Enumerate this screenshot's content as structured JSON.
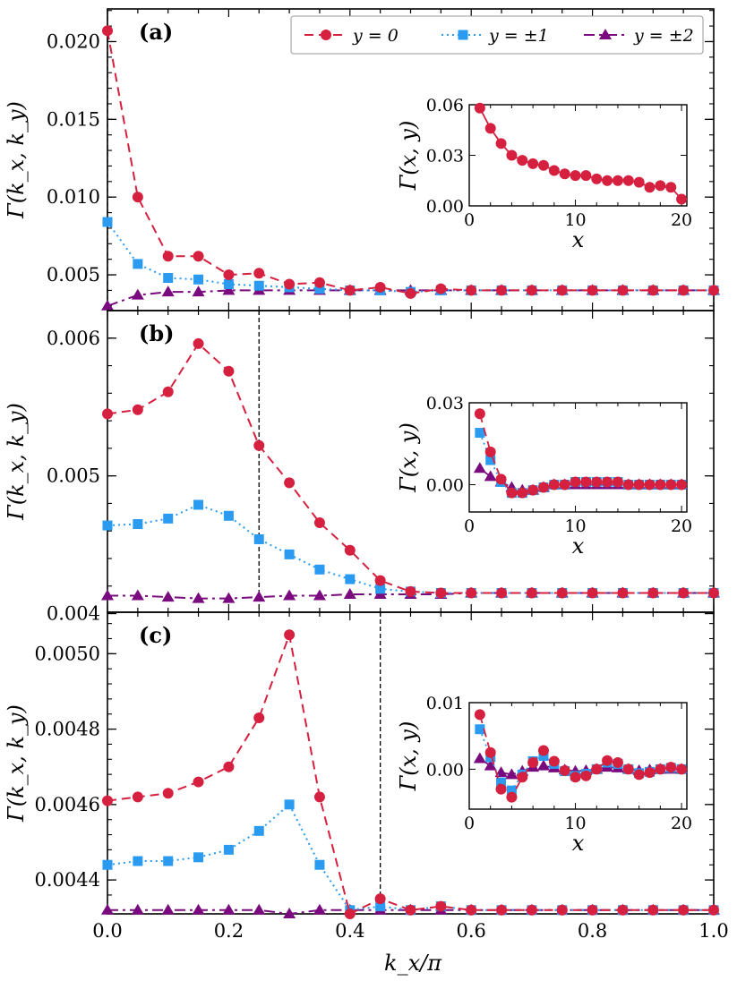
{
  "figure": {
    "xlabel": "k_x/π",
    "legend": [
      "y = 0",
      "y = ±1",
      "y = ±2"
    ]
  },
  "chart_data": [
    {
      "type": "line",
      "panel": "(a)",
      "ylabel": "Γ(k_x, k_y)",
      "xlim": [
        0,
        1.0
      ],
      "ylim": [
        0.0027,
        0.0221
      ],
      "yticks": [
        0.005,
        0.01,
        0.015,
        0.02
      ],
      "ytick_labels": [
        "0.005",
        "0.010",
        "0.015",
        "0.020"
      ],
      "xticks": [
        0,
        0.2,
        0.4,
        0.6,
        0.8,
        1.0
      ],
      "xtick_labels": [
        "0.0",
        "0.2",
        "0.4",
        "0.6",
        "0.8",
        "1.0"
      ],
      "show_xtick_labels": false,
      "vline": 0.0,
      "x": [
        0,
        0.05,
        0.1,
        0.15,
        0.2,
        0.25,
        0.3,
        0.35,
        0.4,
        0.45,
        0.5,
        0.55,
        0.6,
        0.65,
        0.7,
        0.75,
        0.8,
        0.85,
        0.9,
        0.95,
        1.0
      ],
      "series": [
        {
          "name": "y = 0",
          "values": [
            0.0207,
            0.01,
            0.0062,
            0.0062,
            0.005,
            0.0051,
            0.0044,
            0.0045,
            0.004,
            0.0042,
            0.0038,
            0.0041,
            0.004,
            0.004,
            0.004,
            0.004,
            0.004,
            0.004,
            0.004,
            0.004,
            0.004
          ]
        },
        {
          "name": "y = ±1",
          "values": [
            0.0084,
            0.0057,
            0.0048,
            0.0047,
            0.0044,
            0.0043,
            0.0042,
            0.0041,
            0.004,
            0.004,
            0.0039,
            0.004,
            0.004,
            0.004,
            0.004,
            0.004,
            0.004,
            0.004,
            0.004,
            0.004,
            0.004
          ]
        },
        {
          "name": "y = ±2",
          "values": [
            0.003,
            0.0037,
            0.0039,
            0.0039,
            0.004,
            0.004,
            0.004,
            0.004,
            0.004,
            0.004,
            0.004,
            0.004,
            0.004,
            0.004,
            0.004,
            0.004,
            0.004,
            0.004,
            0.004,
            0.004,
            0.004
          ]
        }
      ],
      "inset": {
        "xlabel": "x",
        "ylabel": "Γ(x, y)",
        "xlim": [
          0,
          20.5
        ],
        "ylim": [
          0,
          0.06
        ],
        "xticks": [
          0,
          10,
          20
        ],
        "yticks": [
          0.0,
          0.03,
          0.06
        ],
        "ytick_labels": [
          "0.00",
          "0.03",
          "0.06"
        ],
        "x": [
          1,
          2,
          3,
          4,
          5,
          6,
          7,
          8,
          9,
          10,
          11,
          12,
          13,
          14,
          15,
          16,
          17,
          18,
          19,
          20
        ],
        "series": [
          {
            "name": "y = 0",
            "values": [
              0.058,
              0.046,
              0.037,
              0.03,
              0.027,
              0.025,
              0.024,
              0.021,
              0.019,
              0.018,
              0.018,
              0.016,
              0.015,
              0.015,
              0.015,
              0.014,
              0.011,
              0.012,
              0.011,
              0.004
            ]
          }
        ]
      }
    },
    {
      "type": "line",
      "panel": "(b)",
      "ylabel": "Γ(k_x, k_y)",
      "xlim": [
        0,
        1.0
      ],
      "ylim": [
        0.00401,
        0.0062
      ],
      "yticks": [
        0.004,
        0.005,
        0.006
      ],
      "ytick_labels": [
        "0.004",
        "0.005",
        "0.006"
      ],
      "xticks": [
        0,
        0.2,
        0.4,
        0.6,
        0.8,
        1.0
      ],
      "xtick_labels": [
        "0.0",
        "0.2",
        "0.4",
        "0.6",
        "0.8",
        "1.0"
      ],
      "show_xtick_labels": false,
      "vline": 0.25,
      "x": [
        0,
        0.05,
        0.1,
        0.15,
        0.2,
        0.25,
        0.3,
        0.35,
        0.4,
        0.45,
        0.5,
        0.55,
        0.6,
        0.65,
        0.7,
        0.75,
        0.8,
        0.85,
        0.9,
        0.95,
        1.0
      ],
      "series": [
        {
          "name": "y = 0",
          "values": [
            0.00545,
            0.00548,
            0.00561,
            0.00596,
            0.00576,
            0.00522,
            0.00495,
            0.00466,
            0.00446,
            0.00424,
            0.00416,
            0.00415,
            0.00415,
            0.00415,
            0.00415,
            0.00415,
            0.00415,
            0.00415,
            0.00415,
            0.00415,
            0.00415
          ]
        },
        {
          "name": "y = ±1",
          "values": [
            0.00464,
            0.00465,
            0.00469,
            0.00479,
            0.00471,
            0.00454,
            0.00443,
            0.00432,
            0.00425,
            0.00418,
            0.00416,
            0.00415,
            0.00415,
            0.00415,
            0.00415,
            0.00415,
            0.00415,
            0.00415,
            0.00415,
            0.00415,
            0.00415
          ]
        },
        {
          "name": "y = ±2",
          "values": [
            0.00413,
            0.00413,
            0.00412,
            0.00411,
            0.00411,
            0.00412,
            0.00413,
            0.00413,
            0.00414,
            0.00414,
            0.00414,
            0.00414,
            0.00415,
            0.00415,
            0.00415,
            0.00415,
            0.00415,
            0.00415,
            0.00415,
            0.00415,
            0.00415
          ]
        }
      ],
      "inset": {
        "xlabel": "x",
        "ylabel": "Γ(x, y)",
        "xlim": [
          0,
          20.5
        ],
        "ylim": [
          -0.01,
          0.03
        ],
        "xticks": [
          0,
          10,
          20
        ],
        "yticks": [
          0.0,
          0.03
        ],
        "ytick_labels": [
          "0.00",
          "0.03"
        ],
        "x": [
          1,
          2,
          3,
          4,
          5,
          6,
          7,
          8,
          9,
          10,
          11,
          12,
          13,
          14,
          15,
          16,
          17,
          18,
          19,
          20
        ],
        "series": [
          {
            "name": "y = 0",
            "values": [
              0.026,
              0.012,
              0.002,
              -0.003,
              -0.003,
              -0.002,
              -0.001,
              0.0,
              0.0,
              0.001,
              0.001,
              0.001,
              0.001,
              0.001,
              0.0,
              0.0,
              0.0,
              0.0,
              0.0,
              0.0
            ]
          },
          {
            "name": "y = ±1",
            "values": [
              0.019,
              0.009,
              0.001,
              -0.003,
              -0.003,
              -0.002,
              -0.001,
              0.0,
              0.0,
              0.001,
              0.001,
              0.001,
              0.001,
              0.001,
              0.0,
              0.0,
              0.0,
              0.0,
              0.0,
              0.0
            ]
          },
          {
            "name": "y = ±2",
            "values": [
              0.006,
              0.003,
              0.001,
              -0.001,
              -0.002,
              -0.002,
              -0.001,
              0.0,
              0.0,
              0.0,
              0.0,
              0.0,
              0.0,
              0.0,
              0.0,
              0.0,
              0.0,
              0.0,
              0.0,
              0.0
            ]
          }
        ]
      }
    },
    {
      "type": "line",
      "panel": "(c)",
      "ylabel": "Γ(k_x, k_y)",
      "xlim": [
        0,
        1.0
      ],
      "ylim": [
        0.00431,
        0.00511
      ],
      "yticks": [
        0.0044,
        0.0046,
        0.0048,
        0.005
      ],
      "ytick_labels": [
        "0.0044",
        "0.0046",
        "0.0048",
        "0.0050"
      ],
      "xticks": [
        0,
        0.2,
        0.4,
        0.6,
        0.8,
        1.0
      ],
      "xtick_labels": [
        "0.0",
        "0.2",
        "0.4",
        "0.6",
        "0.8",
        "1.0"
      ],
      "show_xtick_labels": true,
      "vline": 0.45,
      "x": [
        0,
        0.05,
        0.1,
        0.15,
        0.2,
        0.25,
        0.3,
        0.35,
        0.4,
        0.45,
        0.5,
        0.55,
        0.6,
        0.65,
        0.7,
        0.75,
        0.8,
        0.85,
        0.9,
        0.95,
        1.0
      ],
      "series": [
        {
          "name": "y = 0",
          "values": [
            0.00461,
            0.00462,
            0.00463,
            0.00466,
            0.0047,
            0.00483,
            0.00505,
            0.00462,
            0.00431,
            0.00435,
            0.00432,
            0.00433,
            0.00432,
            0.00432,
            0.00432,
            0.00432,
            0.00432,
            0.00432,
            0.00432,
            0.00432,
            0.00432
          ]
        },
        {
          "name": "y = ±1",
          "values": [
            0.00444,
            0.00445,
            0.00445,
            0.00446,
            0.00448,
            0.00453,
            0.0046,
            0.00444,
            0.00432,
            0.00433,
            0.00432,
            0.00433,
            0.00432,
            0.00432,
            0.00432,
            0.00432,
            0.00432,
            0.00432,
            0.00432,
            0.00432,
            0.00432
          ]
        },
        {
          "name": "y = ±2",
          "values": [
            0.00432,
            0.00432,
            0.00432,
            0.00432,
            0.00432,
            0.00432,
            0.00431,
            0.00432,
            0.00432,
            0.00432,
            0.00432,
            0.00432,
            0.00432,
            0.00432,
            0.00432,
            0.00432,
            0.00432,
            0.00432,
            0.00432,
            0.00432,
            0.00432
          ]
        }
      ],
      "inset": {
        "xlabel": "x",
        "ylabel": "Γ(x, y)",
        "xlim": [
          0,
          20.5
        ],
        "ylim": [
          -0.006,
          0.01
        ],
        "xticks": [
          0,
          10,
          20
        ],
        "yticks": [
          0.0,
          0.01
        ],
        "ytick_labels": [
          "0.00",
          "0.01"
        ],
        "x": [
          1,
          2,
          3,
          4,
          5,
          6,
          7,
          8,
          9,
          10,
          11,
          12,
          13,
          14,
          15,
          16,
          17,
          18,
          19,
          20
        ],
        "series": [
          {
            "name": "y = 0",
            "values": [
              0.0082,
              0.0025,
              -0.003,
              -0.0042,
              -0.0012,
              0.001,
              0.0028,
              0.0012,
              -0.0002,
              -0.0012,
              -0.001,
              0.0,
              0.0013,
              0.001,
              0.0,
              -0.0008,
              -0.0005,
              0.0,
              0.0003,
              0.0
            ]
          },
          {
            "name": "y = ±1",
            "values": [
              0.006,
              0.0018,
              -0.002,
              -0.0032,
              -0.0008,
              0.0012,
              0.002,
              0.0008,
              -0.0003,
              -0.001,
              -0.0007,
              0.0,
              0.001,
              0.0008,
              0.0,
              -0.0006,
              -0.0004,
              0.0,
              0.0002,
              0.0
            ]
          },
          {
            "name": "y = ±2",
            "values": [
              0.0016,
              0.0005,
              -0.0005,
              -0.0008,
              -0.0003,
              0.0003,
              0.0005,
              0.0002,
              -0.0001,
              -0.0003,
              -0.0002,
              0.0,
              0.0003,
              0.0002,
              0.0,
              -0.0002,
              -0.0001,
              0.0,
              0.0,
              0.0
            ]
          }
        ]
      }
    }
  ],
  "styles": {
    "series_colors": [
      "#d6203f",
      "#2a9bf0",
      "#7a0b7e"
    ]
  }
}
